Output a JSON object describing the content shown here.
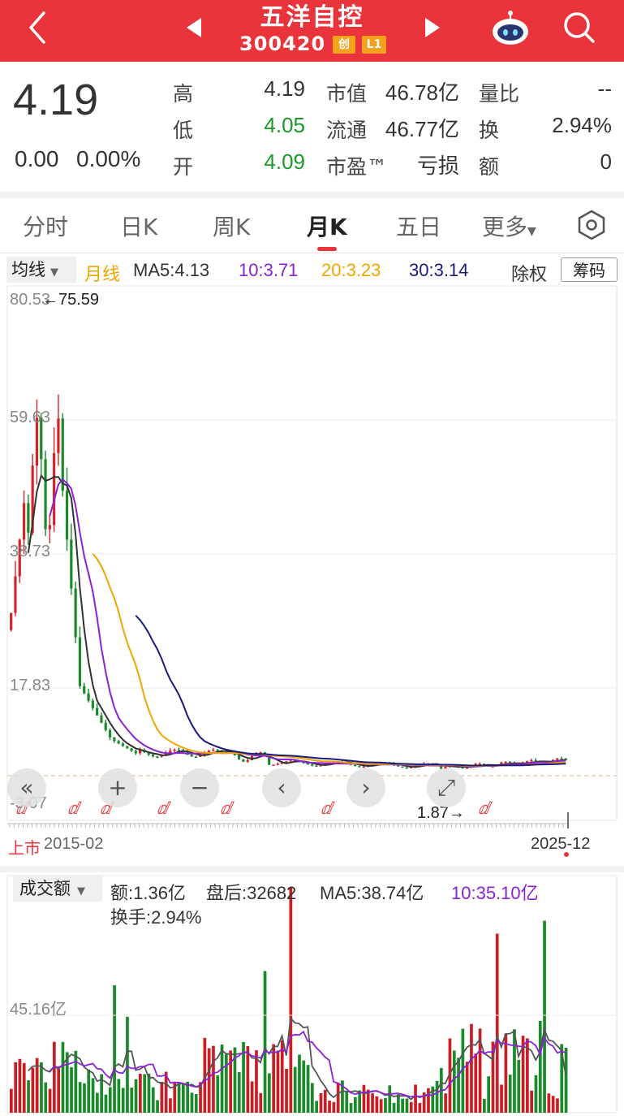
{
  "header": {
    "title": "五洋自控",
    "code": "300420",
    "badge_chuang": "创",
    "badge_level": "L1",
    "bg_color": "#e8343a"
  },
  "quote": {
    "price": "4.19",
    "change": "0.00",
    "change_pct": "0.00%",
    "high_label": "高",
    "high_value": "4.19",
    "low_label": "低",
    "low_value": "4.05",
    "open_label": "开",
    "open_value": "4.09",
    "mktcap_label": "市值",
    "mktcap_value": "46.78亿",
    "float_label": "流通",
    "float_value": "46.77亿",
    "pe_label": "市盈™",
    "pe_value": "亏损",
    "volratio_label": "量比",
    "volratio_value": "--",
    "turnover_label": "换",
    "turnover_value": "2.94%",
    "amount_label": "额",
    "amount_value": "0",
    "up_color": "#e8343a",
    "down_color": "#1a9a2a"
  },
  "tabs": [
    "分时",
    "日K",
    "周K",
    "月K",
    "五日",
    "更多"
  ],
  "active_tab": "月K",
  "ma_bar": {
    "dropdown": "均线",
    "period": "月线",
    "ma5": "MA5:4.13",
    "ma10": "10:3.71",
    "ma20": "20:3.23",
    "ma30": "30:3.14",
    "adjust": "除权",
    "chips": "筹码",
    "colors": {
      "ma5": "#333333",
      "ma10": "#8a22d6",
      "ma20": "#f0a500",
      "ma30": "#1a1a80"
    }
  },
  "kline": {
    "y_labels": [
      "80.53",
      "59.63",
      "38.73",
      "17.83",
      "-3.07"
    ],
    "high_marker": "←75.59",
    "low_marker": "1.87→",
    "start_label": "2015-02",
    "listed_label": "上市",
    "end_label": "2025-12"
  },
  "volume": {
    "dropdown": "成交额",
    "amount": "额:1.36亿",
    "after_hours": "盘后:32682",
    "ma5": "MA5:38.74亿",
    "ma10": "10:35.10亿",
    "turnover": "换手:2.94%",
    "y_label": "45.16亿"
  },
  "chart_data": {
    "type": "candlestick",
    "title": "",
    "x_range": [
      "2015-02",
      "2025-12"
    ],
    "ylim": [
      -3.07,
      80.53
    ],
    "high": 75.59,
    "low": 1.87,
    "ma_values": {
      "MA5": 4.13,
      "MA10": 3.71,
      "MA20": 3.23,
      "MA30": 3.14
    }
  }
}
